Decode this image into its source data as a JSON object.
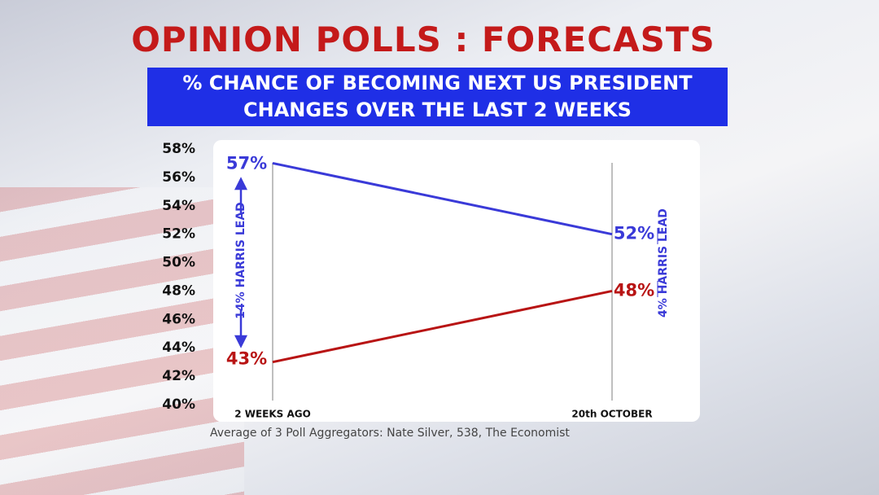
{
  "chart_data": {
    "type": "line",
    "title": "OPINION POLLS : FORECASTS",
    "subtitle": [
      "% CHANCE OF BECOMING",
      "NEXT US PRESIDENT",
      "CHANGES OVER THE LAST 2 WEEKS"
    ],
    "categories": [
      "2 WEEKS AGO",
      "20th OCTOBER"
    ],
    "series": [
      {
        "color": "#3a3ad8",
        "values": [
          57,
          52
        ],
        "value_labels": [
          "57%",
          "52%"
        ]
      },
      {
        "color": "#b81414",
        "values": [
          43,
          48
        ],
        "value_labels": [
          "43%",
          "48%"
        ]
      }
    ],
    "ylim": [
      40,
      58
    ],
    "yticks": [
      {
        "value": 40,
        "label": "40%"
      },
      {
        "value": 42,
        "label": "42%"
      },
      {
        "value": 44,
        "label": "44%"
      },
      {
        "value": 46,
        "label": "46%"
      },
      {
        "value": 48,
        "label": "48%"
      },
      {
        "value": 50,
        "label": "50%"
      },
      {
        "value": 52,
        "label": "52%"
      },
      {
        "value": 54,
        "label": "54%"
      },
      {
        "value": 56,
        "label": "56%"
      },
      {
        "value": 58,
        "label": "58%"
      }
    ],
    "annotations": [
      {
        "text": "14% HARRIS LEAD"
      },
      {
        "text": "4% HARRIS LEAD"
      }
    ],
    "footnote": "Average of 3 Poll Aggregators: Nate Silver, 538, The Economist"
  }
}
